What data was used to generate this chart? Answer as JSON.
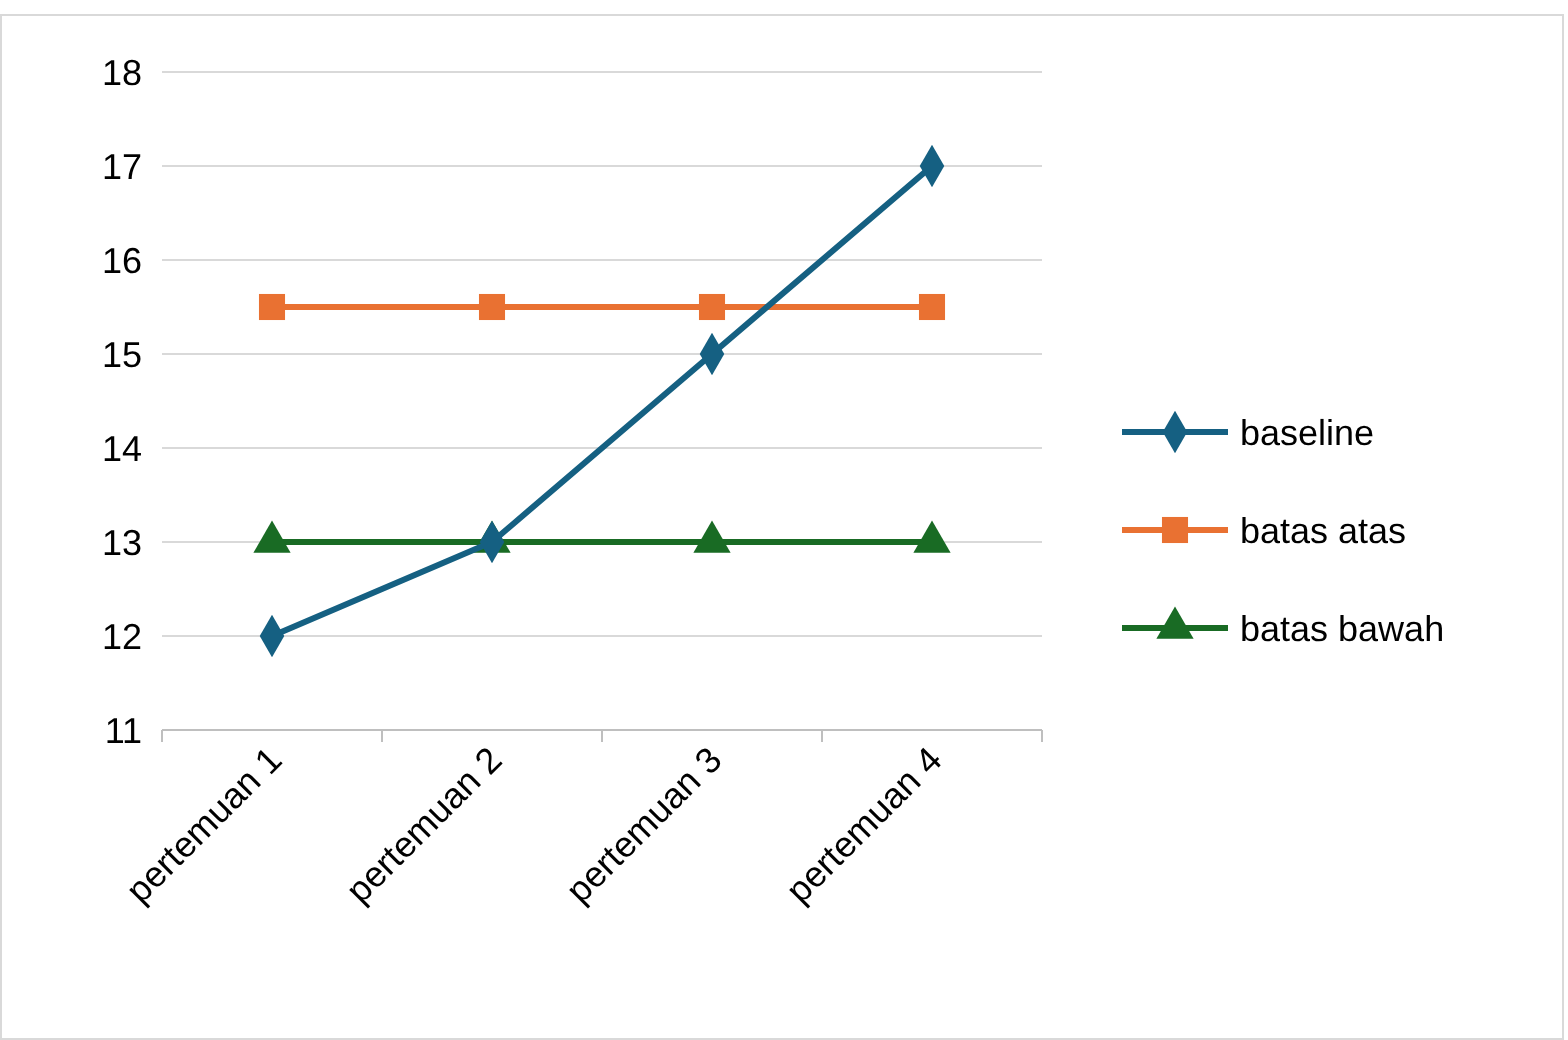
{
  "chart_data": {
    "type": "line",
    "categories": [
      "pertemuan 1",
      "pertemuan 2",
      "pertemuan 3",
      "pertemuan 4"
    ],
    "series": [
      {
        "name": "baseline",
        "color": "#156082",
        "values": [
          12,
          13,
          15,
          17
        ],
        "marker": "diamond"
      },
      {
        "name": "batas atas",
        "color": "#e97132",
        "values": [
          15.5,
          15.5,
          15.5,
          15.5
        ],
        "marker": "square"
      },
      {
        "name": "batas bawah",
        "color": "#196b24",
        "values": [
          13,
          13,
          13,
          13
        ],
        "marker": "triangle"
      }
    ],
    "ylim": [
      11,
      18
    ],
    "yticks": [
      11,
      12,
      13,
      14,
      15,
      16,
      17,
      18
    ],
    "grid": "y",
    "legend": "right",
    "line_style": "solid"
  }
}
